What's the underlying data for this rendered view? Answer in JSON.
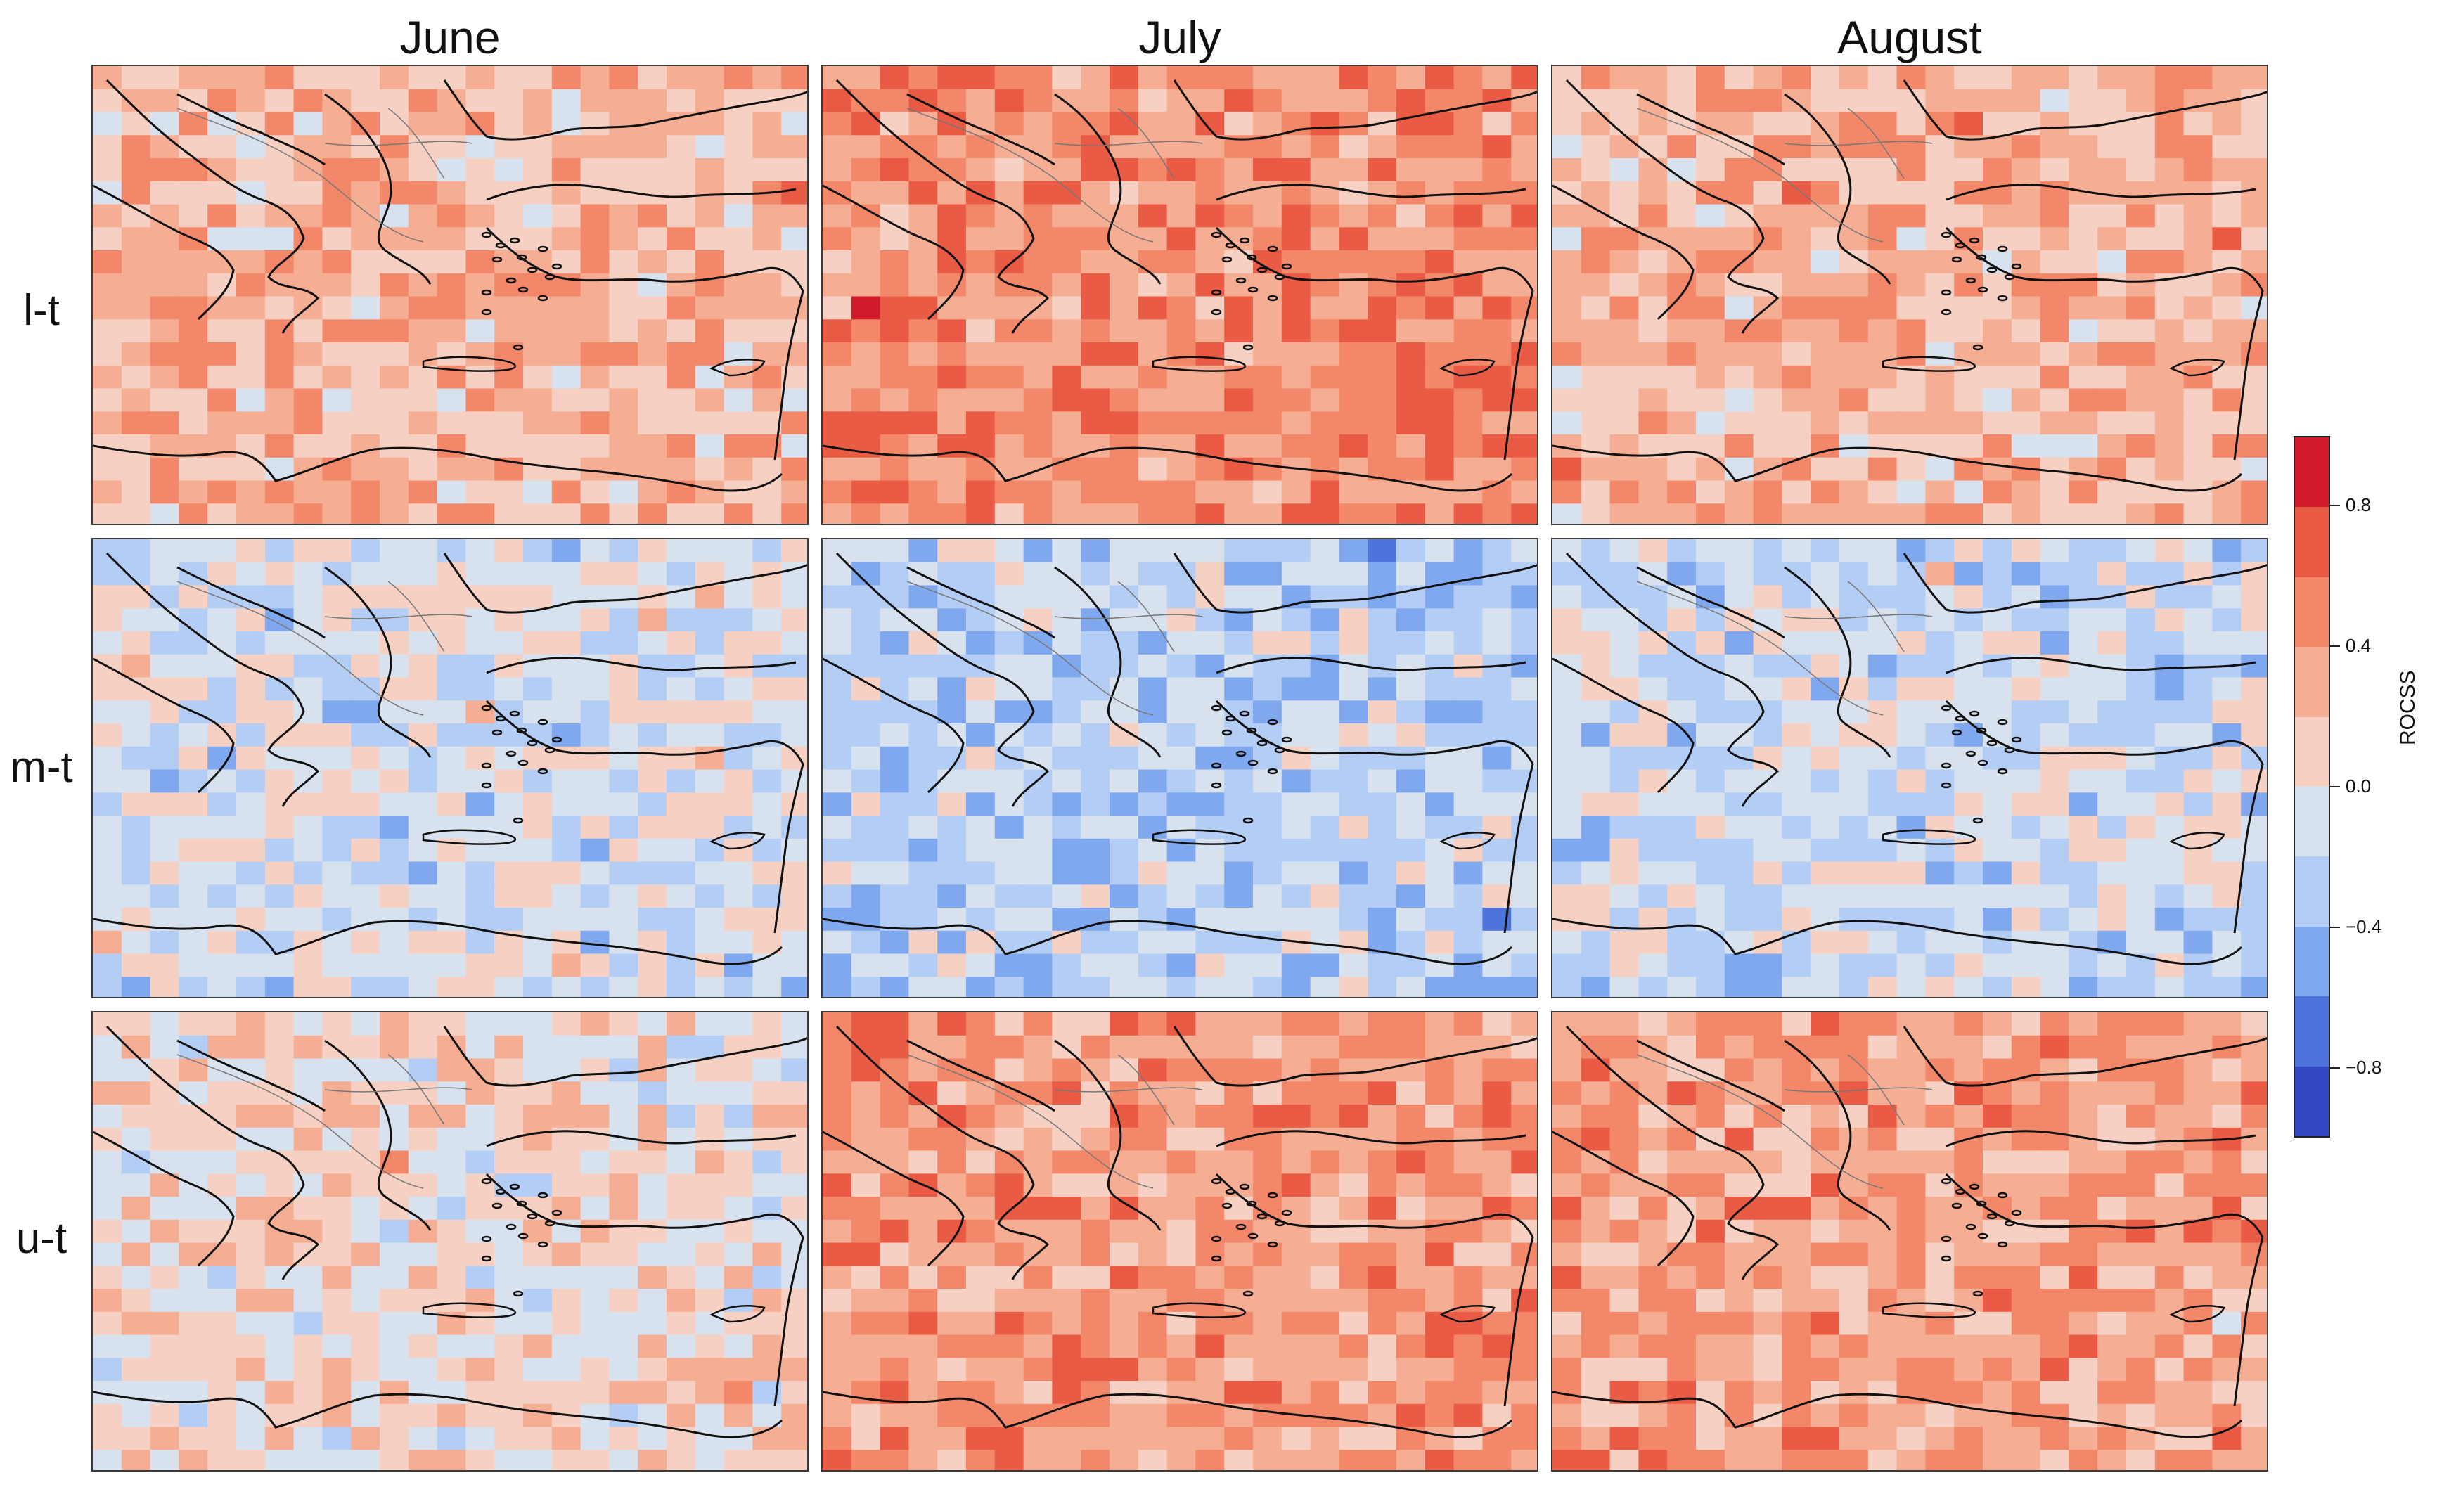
{
  "columns": [
    "June",
    "July",
    "August"
  ],
  "rows": [
    "l-t",
    "m-t",
    "u-t"
  ],
  "colorbar": {
    "label": "ROCSS",
    "range": [
      -1.0,
      1.0
    ],
    "step": 0.2,
    "tick_labels": [
      "0.8",
      "0.4",
      "0.0",
      "−0.4",
      "−0.8"
    ],
    "tick_values": [
      0.8,
      0.4,
      0.0,
      -0.4,
      -0.8
    ],
    "colors": [
      "#3448c2",
      "#4d74db",
      "#7fa8ee",
      "#b4cdf5",
      "#d8e2ef",
      "#f6d1c3",
      "#f5ad93",
      "#f3876a",
      "#e95b45",
      "#cf1b2b"
    ]
  },
  "panels": [
    {
      "row": "l-t",
      "column": "June",
      "tendency": 0.25
    },
    {
      "row": "l-t",
      "column": "July",
      "tendency": 0.45
    },
    {
      "row": "l-t",
      "column": "August",
      "tendency": 0.25
    },
    {
      "row": "m-t",
      "column": "June",
      "tendency": -0.1
    },
    {
      "row": "m-t",
      "column": "July",
      "tendency": -0.25
    },
    {
      "row": "m-t",
      "column": "August",
      "tendency": -0.15
    },
    {
      "row": "u-t",
      "column": "June",
      "tendency": 0.05
    },
    {
      "row": "u-t",
      "column": "July",
      "tendency": 0.4
    },
    {
      "row": "u-t",
      "column": "August",
      "tendency": 0.35
    }
  ]
}
